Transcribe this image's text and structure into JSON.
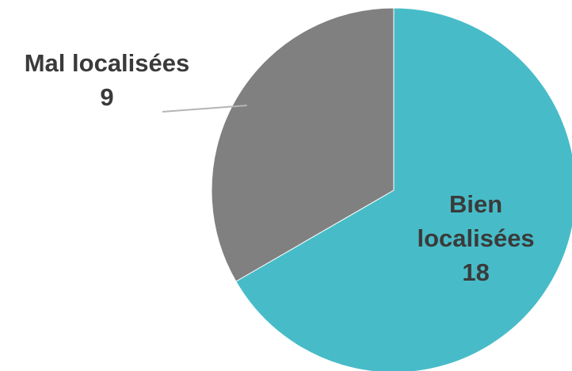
{
  "chart_data": {
    "type": "pie",
    "slices": [
      {
        "label_lines": [
          "Bien",
          "localisées"
        ],
        "value": 18,
        "value_text": "18",
        "color": "#47BCC8",
        "label_color": "#3a3a3a"
      },
      {
        "label_lines": [
          "Mal localisées"
        ],
        "value": 9,
        "value_text": "9",
        "color": "#808080",
        "label_color": "#3a3a3a"
      }
    ],
    "start_angle_deg": 0,
    "direction": "clockwise",
    "legend": "none",
    "label_placement": {
      "slice_0": "inside",
      "slice_1": "outside-left-with-leader"
    }
  }
}
